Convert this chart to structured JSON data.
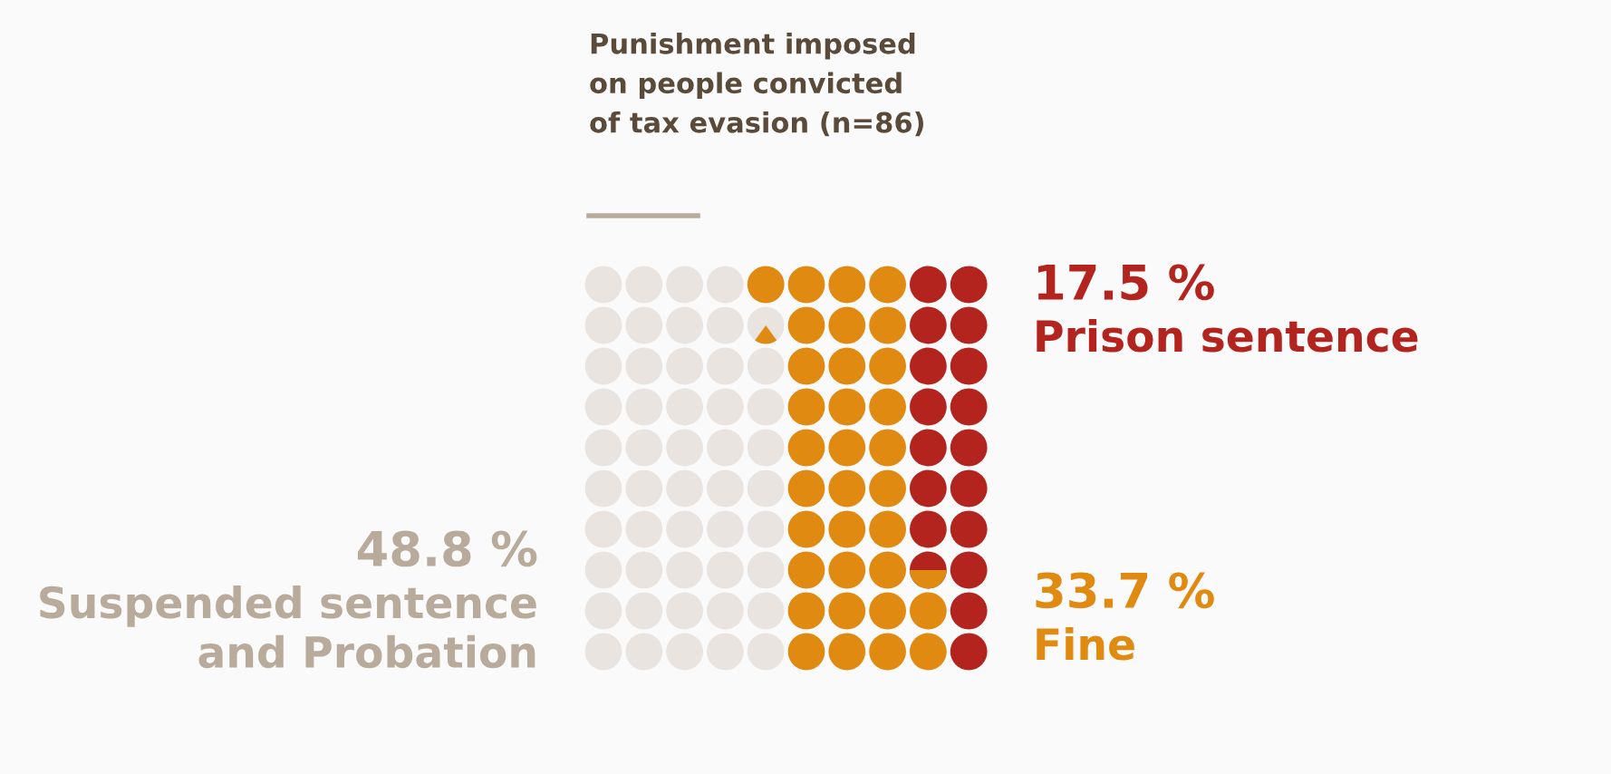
{
  "chart_data": {
    "type": "other",
    "title": "Punishment imposed\non people convicted\nof tax evasion (n=86)",
    "categories": [
      "Suspended sentence\nand Probation",
      "Fine",
      "Prison sentence"
    ],
    "values": [
      48.8,
      33.7,
      17.5
    ],
    "value_labels": [
      "48.8 %",
      "33.7 %",
      "17.5 %"
    ],
    "colors": [
      "#e9e4df",
      "#e08a12",
      "#b3241f"
    ]
  }
}
